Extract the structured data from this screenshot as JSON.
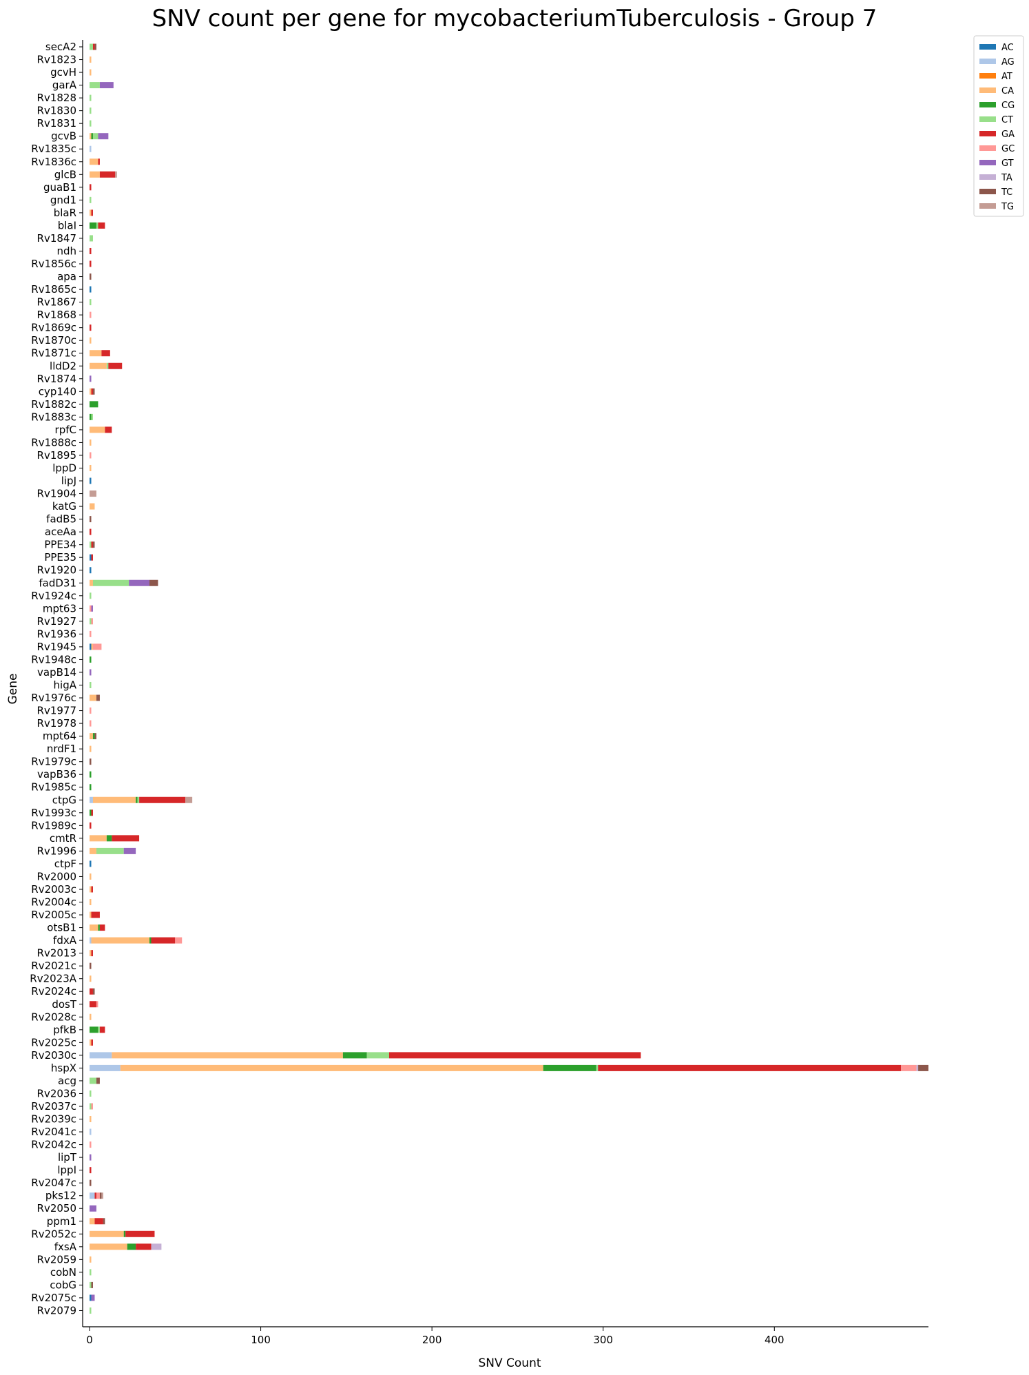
{
  "chart_data": {
    "type": "bar",
    "orientation": "horizontal",
    "stacked": true,
    "title": "SNV count per gene for mycobacteriumTuberculosis - Group 7",
    "xlabel": "SNV Count",
    "ylabel": "Gene",
    "xlim": [
      0,
      490
    ],
    "xticks": [
      0,
      100,
      200,
      300,
      400
    ],
    "grid": false,
    "legend_position": "top-right",
    "colors": {
      "AC": "#1f77b4",
      "AG": "#aec7e8",
      "AT": "#ff7f0e",
      "CA": "#ffbb78",
      "CG": "#2ca02c",
      "CT": "#98df8a",
      "GA": "#d62728",
      "GC": "#ff9896",
      "GT": "#9467bd",
      "TA": "#c5b0d5",
      "TC": "#8c564b",
      "TG": "#c49c94"
    },
    "series_order": [
      "AC",
      "AG",
      "AT",
      "CA",
      "CG",
      "CT",
      "GA",
      "GC",
      "GT",
      "TA",
      "TC",
      "TG"
    ],
    "genes": [
      {
        "gene": "secA2",
        "v": {
          "CT": 2,
          "GA": 1,
          "TC": 1
        }
      },
      {
        "gene": "Rv1823",
        "v": {
          "CA": 1
        }
      },
      {
        "gene": "gcvH",
        "v": {
          "CA": 1
        }
      },
      {
        "gene": "garA",
        "v": {
          "CT": 6,
          "GT": 8
        }
      },
      {
        "gene": "Rv1828",
        "v": {
          "CT": 1
        }
      },
      {
        "gene": "Rv1830",
        "v": {
          "CT": 1
        }
      },
      {
        "gene": "Rv1831",
        "v": {
          "CT": 1
        }
      },
      {
        "gene": "gcvB",
        "v": {
          "CG": 1,
          "CT": 3,
          "CA": 1,
          "GT": 6
        }
      },
      {
        "gene": "Rv1835c",
        "v": {
          "AG": 1
        }
      },
      {
        "gene": "Rv1836c",
        "v": {
          "CA": 5,
          "GA": 1
        }
      },
      {
        "gene": "glcB",
        "v": {
          "CA": 6,
          "GA": 9,
          "TG": 1
        }
      },
      {
        "gene": "guaB1",
        "v": {
          "GA": 1
        }
      },
      {
        "gene": "gnd1",
        "v": {
          "CT": 1
        }
      },
      {
        "gene": "blaR",
        "v": {
          "CA": 1,
          "GA": 1
        }
      },
      {
        "gene": "blaI",
        "v": {
          "CT": 1,
          "CG": 4,
          "GA": 4
        }
      },
      {
        "gene": "Rv1847",
        "v": {
          "CT": 2
        }
      },
      {
        "gene": "ndh",
        "v": {
          "GA": 1
        }
      },
      {
        "gene": "Rv1856c",
        "v": {
          "GA": 1
        }
      },
      {
        "gene": "apa",
        "v": {
          "TC": 1
        }
      },
      {
        "gene": "Rv1865c",
        "v": {
          "AC": 1
        }
      },
      {
        "gene": "Rv1867",
        "v": {
          "CT": 1
        }
      },
      {
        "gene": "Rv1868",
        "v": {
          "GC": 1
        }
      },
      {
        "gene": "Rv1869c",
        "v": {
          "GA": 1
        }
      },
      {
        "gene": "Rv1870c",
        "v": {
          "CA": 1
        }
      },
      {
        "gene": "Rv1871c",
        "v": {
          "CA": 7,
          "GA": 5
        }
      },
      {
        "gene": "lldD2",
        "v": {
          "CA": 10,
          "CT": 1,
          "GA": 8
        }
      },
      {
        "gene": "Rv1874",
        "v": {
          "GT": 1
        }
      },
      {
        "gene": "cyp140",
        "v": {
          "CA": 1,
          "GA": 1,
          "TC": 1
        }
      },
      {
        "gene": "Rv1882c",
        "v": {
          "CG": 5
        }
      },
      {
        "gene": "Rv1883c",
        "v": {
          "CT": 1,
          "CG": 1
        }
      },
      {
        "gene": "rpfC",
        "v": {
          "CA": 9,
          "GA": 4
        }
      },
      {
        "gene": "Rv1888c",
        "v": {
          "CA": 1
        }
      },
      {
        "gene": "Rv1895",
        "v": {
          "GC": 1
        }
      },
      {
        "gene": "lppD",
        "v": {
          "CA": 1
        }
      },
      {
        "gene": "lipJ",
        "v": {
          "AC": 1
        }
      },
      {
        "gene": "Rv1904",
        "v": {
          "TG": 4
        }
      },
      {
        "gene": "katG",
        "v": {
          "CA": 3
        }
      },
      {
        "gene": "fadB5",
        "v": {
          "TC": 1
        }
      },
      {
        "gene": "aceAa",
        "v": {
          "GA": 1
        }
      },
      {
        "gene": "PPE34",
        "v": {
          "CT": 1,
          "GA": 1,
          "TC": 1
        }
      },
      {
        "gene": "PPE35",
        "v": {
          "AC": 1,
          "GA": 1
        }
      },
      {
        "gene": "Rv1920",
        "v": {
          "AC": 1
        }
      },
      {
        "gene": "fadD31",
        "v": {
          "CT": 21,
          "CA": 2,
          "GT": 12,
          "TC": 5
        }
      },
      {
        "gene": "Rv1924c",
        "v": {
          "CT": 1
        }
      },
      {
        "gene": "mpt63",
        "v": {
          "GC": 1,
          "GT": 1
        }
      },
      {
        "gene": "Rv1927",
        "v": {
          "CT": 1,
          "GC": 1
        }
      },
      {
        "gene": "Rv1936",
        "v": {
          "GC": 1
        }
      },
      {
        "gene": "Rv1945",
        "v": {
          "AC": 1,
          "CA": 1,
          "GC": 5
        }
      },
      {
        "gene": "Rv1948c",
        "v": {
          "CG": 1
        }
      },
      {
        "gene": "vapB14",
        "v": {
          "GT": 1
        }
      },
      {
        "gene": "higA",
        "v": {
          "CT": 1
        }
      },
      {
        "gene": "Rv1976c",
        "v": {
          "CA": 4,
          "TC": 2
        }
      },
      {
        "gene": "Rv1977",
        "v": {
          "GC": 1
        }
      },
      {
        "gene": "Rv1978",
        "v": {
          "GC": 1
        }
      },
      {
        "gene": "mpt64",
        "v": {
          "CA": 2,
          "CG": 1,
          "TC": 1
        }
      },
      {
        "gene": "nrdF1",
        "v": {
          "CA": 1
        }
      },
      {
        "gene": "Rv1979c",
        "v": {
          "TC": 1
        }
      },
      {
        "gene": "vapB36",
        "v": {
          "CG": 1
        }
      },
      {
        "gene": "Rv1985c",
        "v": {
          "CG": 1
        }
      },
      {
        "gene": "ctpG",
        "v": {
          "AG": 2,
          "CA": 25,
          "CG": 1,
          "CT": 1,
          "GA": 27,
          "TG": 4
        }
      },
      {
        "gene": "Rv1993c",
        "v": {
          "CG": 1,
          "GA": 1
        }
      },
      {
        "gene": "Rv1989c",
        "v": {
          "GA": 1
        }
      },
      {
        "gene": "cmtR",
        "v": {
          "CA": 10,
          "CG": 3,
          "GA": 16
        }
      },
      {
        "gene": "Rv1996",
        "v": {
          "CA": 4,
          "CT": 16,
          "GT": 7
        }
      },
      {
        "gene": "ctpF",
        "v": {
          "AC": 1
        }
      },
      {
        "gene": "Rv2000",
        "v": {
          "CA": 1
        }
      },
      {
        "gene": "Rv2003c",
        "v": {
          "CA": 1,
          "GA": 1
        }
      },
      {
        "gene": "Rv2004c",
        "v": {
          "CA": 1
        }
      },
      {
        "gene": "Rv2005c",
        "v": {
          "CA": 1,
          "GA": 5
        }
      },
      {
        "gene": "otsB1",
        "v": {
          "CA": 5,
          "CG": 1,
          "GA": 3
        }
      },
      {
        "gene": "fdxA",
        "v": {
          "AG": 1,
          "CA": 34,
          "CG": 1,
          "GA": 14,
          "GC": 4
        }
      },
      {
        "gene": "Rv2013",
        "v": {
          "CA": 1,
          "GA": 1
        }
      },
      {
        "gene": "Rv2021c",
        "v": {
          "TC": 1
        }
      },
      {
        "gene": "Rv2023A",
        "v": {
          "CA": 1
        }
      },
      {
        "gene": "Rv2024c",
        "v": {
          "GA": 2,
          "TC": 1
        }
      },
      {
        "gene": "dosT",
        "v": {
          "GA": 4,
          "GC": 1
        }
      },
      {
        "gene": "Rv2028c",
        "v": {
          "CA": 1
        }
      },
      {
        "gene": "pfkB",
        "v": {
          "CT": 1,
          "CG": 5,
          "GA": 3
        }
      },
      {
        "gene": "Rv2025c",
        "v": {
          "CA": 1,
          "GA": 1
        }
      },
      {
        "gene": "Rv2030c",
        "v": {
          "AG": 13,
          "CA": 135,
          "CG": 14,
          "CT": 13,
          "GA": 147
        }
      },
      {
        "gene": "hspX",
        "v": {
          "AG": 18,
          "CA": 247,
          "CG": 31,
          "CT": 1,
          "GA": 177,
          "GC": 9,
          "TA": 1,
          "TC": 6
        }
      },
      {
        "gene": "acg",
        "v": {
          "CT": 4,
          "TC": 2
        }
      },
      {
        "gene": "Rv2036",
        "v": {
          "CT": 1
        }
      },
      {
        "gene": "Rv2037c",
        "v": {
          "CT": 1,
          "GC": 1
        }
      },
      {
        "gene": "Rv2039c",
        "v": {
          "CA": 1
        }
      },
      {
        "gene": "Rv2041c",
        "v": {
          "AG": 1
        }
      },
      {
        "gene": "Rv2042c",
        "v": {
          "GC": 1
        }
      },
      {
        "gene": "lipT",
        "v": {
          "GT": 1
        }
      },
      {
        "gene": "lppI",
        "v": {
          "GA": 1
        }
      },
      {
        "gene": "Rv2047c",
        "v": {
          "TC": 1
        }
      },
      {
        "gene": "pks12",
        "v": {
          "AG": 3,
          "GA": 1,
          "GC": 2,
          "TC": 1,
          "TG": 1
        }
      },
      {
        "gene": "Rv2050",
        "v": {
          "GT": 4
        }
      },
      {
        "gene": "ppm1",
        "v": {
          "CA": 3,
          "GA": 5,
          "TC": 1
        }
      },
      {
        "gene": "Rv2052c",
        "v": {
          "CA": 20,
          "CG": 1,
          "GA": 17
        }
      },
      {
        "gene": "fxsA",
        "v": {
          "CA": 22,
          "CG": 5,
          "GA": 9,
          "TA": 6
        }
      },
      {
        "gene": "Rv2059",
        "v": {
          "CA": 1
        }
      },
      {
        "gene": "cobN",
        "v": {
          "CT": 1
        }
      },
      {
        "gene": "cobG",
        "v": {
          "CT": 1,
          "TC": 1
        }
      },
      {
        "gene": "Rv2075c",
        "v": {
          "AC": 1,
          "GT": 2
        }
      },
      {
        "gene": "Rv2079",
        "v": {
          "CT": 1
        }
      }
    ]
  }
}
